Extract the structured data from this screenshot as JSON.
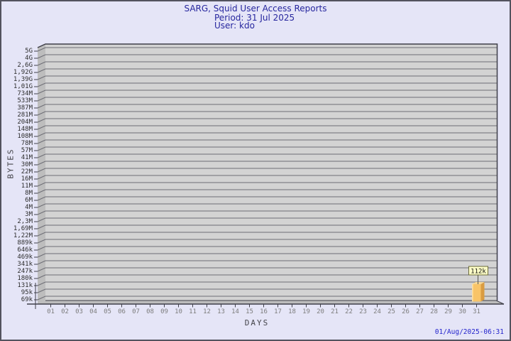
{
  "header": {
    "title": "SARG, Squid User Access Reports",
    "period_line": "Period: 31 Jul 2025",
    "user_line": "User: kdo"
  },
  "footer": {
    "timestamp": "01/Aug/2025-06:31"
  },
  "chart_data": {
    "type": "bar",
    "title": "SARG, Squid User Access Reports",
    "period": "31 Jul 2025",
    "user": "kdo",
    "xlabel": "DAYS",
    "ylabel": "BYTES",
    "grid": true,
    "style": "3d-bar",
    "y_scale": "logarithmic",
    "y_tick_labels": [
      "5G",
      "4G",
      "2,6G",
      "1,92G",
      "1,39G",
      "1,01G",
      "734M",
      "533M",
      "387M",
      "281M",
      "204M",
      "148M",
      "108M",
      "78M",
      "57M",
      "41M",
      "30M",
      "22M",
      "16M",
      "11M",
      "8M",
      "6M",
      "4M",
      "3M",
      "2,3M",
      "1,69M",
      "1,22M",
      "889k",
      "646k",
      "469k",
      "341k",
      "247k",
      "180k",
      "131k",
      "95k",
      "69k"
    ],
    "x_tick_labels": [
      "01",
      "02",
      "03",
      "04",
      "05",
      "06",
      "07",
      "08",
      "09",
      "10",
      "11",
      "12",
      "13",
      "14",
      "15",
      "16",
      "17",
      "18",
      "19",
      "20",
      "21",
      "22",
      "23",
      "24",
      "25",
      "26",
      "27",
      "28",
      "29",
      "30",
      "31"
    ],
    "values": [
      0,
      0,
      0,
      0,
      0,
      0,
      0,
      0,
      0,
      0,
      0,
      0,
      0,
      0,
      0,
      0,
      0,
      0,
      0,
      0,
      0,
      0,
      0,
      0,
      0,
      0,
      0,
      0,
      0,
      0,
      112000
    ],
    "bars": [
      {
        "day": "31",
        "value_bytes": 112000,
        "value_label": "112k"
      }
    ]
  },
  "colors": {
    "background": "#e5e5f7",
    "outer_border": "#53535e",
    "plot_fill": "#d3d3d3",
    "wall_fill": "#bdbdbd",
    "grid_line": "#6e6e76",
    "frame": "#3f3f49",
    "y_tick_color": "#2e2e2e",
    "x_tick_color": "#7d7d7d",
    "title_color": "#26269e",
    "timestamp_color": "#2424cd",
    "bar_front": "#f8c468",
    "bar_side": "#d99c42",
    "bar_top": "#f6d694",
    "value_box_fill": "#ffffc8",
    "value_box_border": "#6b6b3a"
  }
}
